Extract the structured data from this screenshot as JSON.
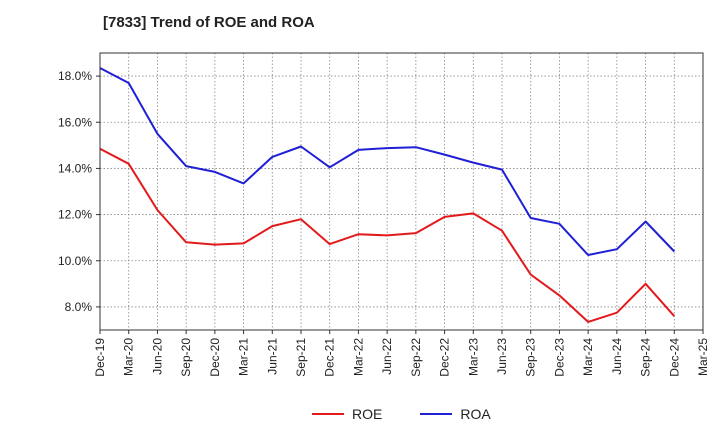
{
  "title": "[7833]  Trend of ROE and ROA",
  "chart_data": {
    "type": "line",
    "title": "[7833]  Trend of ROE and ROA",
    "xlabel": "",
    "ylabel": "",
    "categories": [
      "Dec-19",
      "Mar-20",
      "Jun-20",
      "Sep-20",
      "Dec-20",
      "Mar-21",
      "Jun-21",
      "Sep-21",
      "Dec-21",
      "Mar-22",
      "Jun-22",
      "Sep-22",
      "Dec-22",
      "Mar-23",
      "Jun-23",
      "Sep-23",
      "Dec-23",
      "Mar-24",
      "Jun-24",
      "Sep-24",
      "Dec-24",
      "Mar-25"
    ],
    "y_ticks": [
      "8.0%",
      "10.0%",
      "12.0%",
      "14.0%",
      "16.0%",
      "18.0%"
    ],
    "ylim": [
      7.0,
      19.0
    ],
    "grid": true,
    "legend_position": "bottom",
    "series": [
      {
        "name": "ROE",
        "color": "#e31a1c",
        "values": [
          14.85,
          14.2,
          12.2,
          10.8,
          10.7,
          10.75,
          11.5,
          11.8,
          10.72,
          11.15,
          11.1,
          11.2,
          11.9,
          12.05,
          11.3,
          9.4,
          8.5,
          7.35,
          7.75,
          9.0,
          7.6,
          null
        ]
      },
      {
        "name": "ROA",
        "color": "#1f1fd6",
        "values": [
          18.35,
          17.7,
          15.5,
          14.1,
          13.85,
          13.35,
          14.5,
          14.95,
          14.05,
          14.8,
          14.88,
          14.92,
          14.6,
          14.25,
          13.95,
          11.85,
          11.6,
          10.25,
          10.5,
          11.7,
          10.4,
          null
        ]
      }
    ]
  }
}
